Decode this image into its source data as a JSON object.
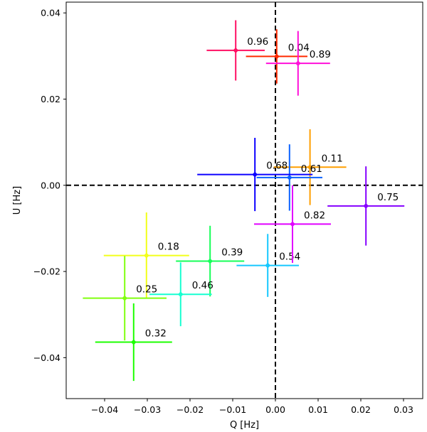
{
  "chart_data": {
    "type": "scatter",
    "title": "",
    "xlabel": "Q [Hz]",
    "ylabel": "U [Hz]",
    "xlim": [
      -0.049,
      0.0345
    ],
    "ylim": [
      -0.0495,
      0.0425
    ],
    "xticks": [
      -0.04,
      -0.03,
      -0.02,
      -0.01,
      0.0,
      0.01,
      0.02,
      0.03
    ],
    "xtick_labels": [
      "−0.04",
      "−0.03",
      "−0.02",
      "−0.01",
      "0.00",
      "0.01",
      "0.02",
      "0.03"
    ],
    "yticks": [
      -0.04,
      -0.02,
      0.0,
      0.02,
      0.04
    ],
    "ytick_labels": [
      "−0.04",
      "−0.02",
      "0.00",
      "0.02",
      "0.04"
    ],
    "grid": false,
    "reference_lines": {
      "x": 0.0,
      "y": 0.0,
      "style": "dashed"
    },
    "points": [
      {
        "label": "0.04",
        "q": 0.0003,
        "u": 0.0299,
        "q_err": 0.0072,
        "u_err": 0.0063,
        "color": "#ff2a00"
      },
      {
        "label": "0.11",
        "q": 0.0081,
        "u": 0.0042,
        "q_err": 0.0085,
        "u_err": 0.0088,
        "color": "#ff9f00"
      },
      {
        "label": "0.18",
        "q": -0.0302,
        "u": -0.0163,
        "q_err": 0.01,
        "u_err": 0.01,
        "color": "#f2ff1a"
      },
      {
        "label": "0.25",
        "q": -0.0353,
        "u": -0.0262,
        "q_err": 0.0098,
        "u_err": 0.0098,
        "color": "#80ff0f"
      },
      {
        "label": "0.32",
        "q": -0.0332,
        "u": -0.0364,
        "q_err": 0.009,
        "u_err": 0.009,
        "color": "#1cff00"
      },
      {
        "label": "0.39",
        "q": -0.0153,
        "u": -0.0176,
        "q_err": 0.008,
        "u_err": 0.0082,
        "color": "#16ff58"
      },
      {
        "label": "0.46",
        "q": -0.0222,
        "u": -0.0253,
        "q_err": 0.0073,
        "u_err": 0.0074,
        "color": "#17ffd1"
      },
      {
        "label": "0.54",
        "q": -0.0018,
        "u": -0.0186,
        "q_err": 0.0073,
        "u_err": 0.0073,
        "color": "#17c8ff"
      },
      {
        "label": "0.61",
        "q": 0.0033,
        "u": 0.0018,
        "q_err": 0.0077,
        "u_err": 0.0077,
        "color": "#0a62ff"
      },
      {
        "label": "0.68",
        "q": -0.0048,
        "u": 0.0025,
        "q_err": 0.0135,
        "u_err": 0.0085,
        "color": "#0c00ff"
      },
      {
        "label": "0.75",
        "q": 0.0212,
        "u": -0.0048,
        "q_err": 0.009,
        "u_err": 0.0092,
        "color": "#8500ff"
      },
      {
        "label": "0.82",
        "q": 0.004,
        "u": -0.009,
        "q_err": 0.009,
        "u_err": 0.009,
        "color": "#e100ff"
      },
      {
        "label": "0.89",
        "q": 0.0053,
        "u": 0.0283,
        "q_err": 0.0075,
        "u_err": 0.0075,
        "color": "#ff0fd9"
      },
      {
        "label": "0.96",
        "q": -0.0093,
        "u": 0.0313,
        "q_err": 0.0068,
        "u_err": 0.007,
        "color": "#ff0f63"
      }
    ]
  }
}
